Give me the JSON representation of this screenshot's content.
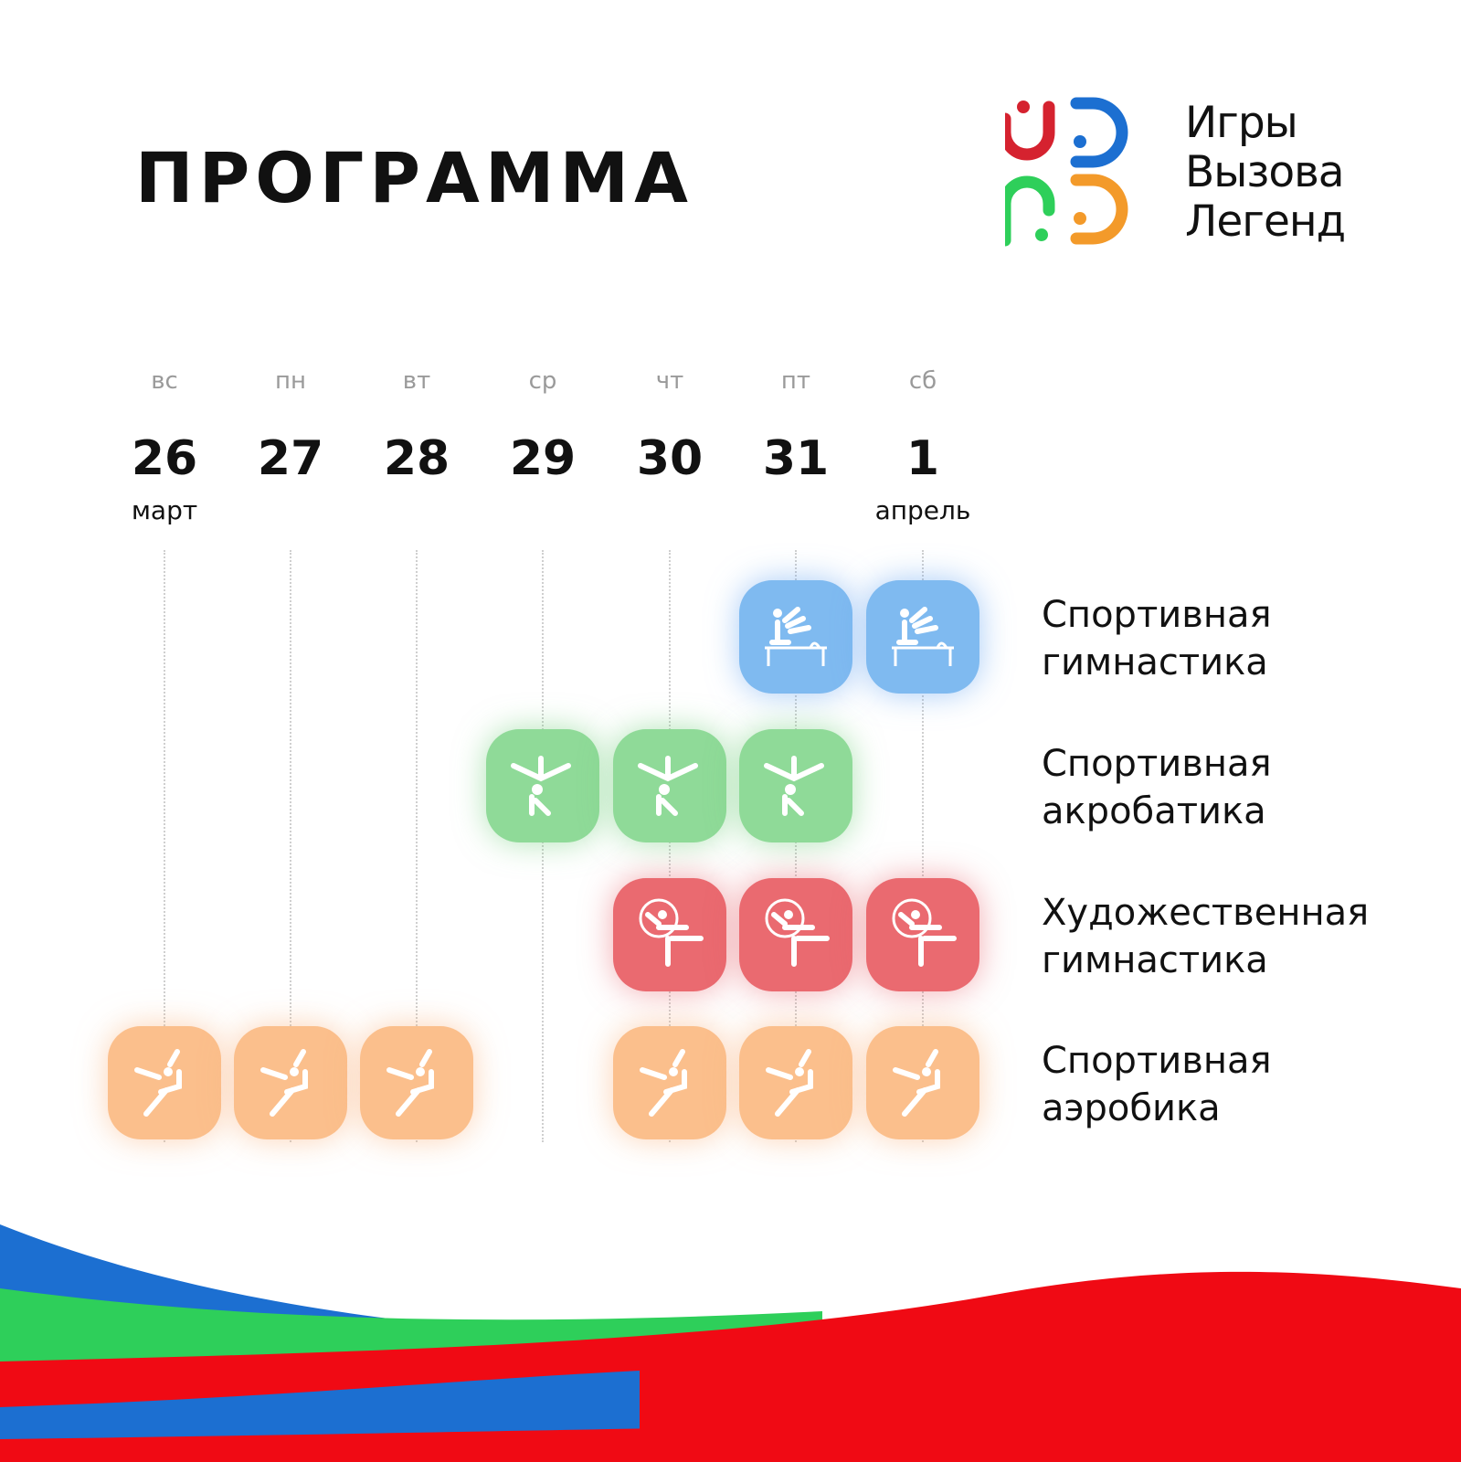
{
  "header": {
    "title": "ПРОГРАММА"
  },
  "logo": {
    "line1": "Игры",
    "line2": "Вызова",
    "line3": "Легенд"
  },
  "days": [
    {
      "dow": "вс",
      "num": "26",
      "month": "март"
    },
    {
      "dow": "пн",
      "num": "27",
      "month": ""
    },
    {
      "dow": "вт",
      "num": "28",
      "month": ""
    },
    {
      "dow": "ср",
      "num": "29",
      "month": ""
    },
    {
      "dow": "чт",
      "num": "30",
      "month": ""
    },
    {
      "dow": "пт",
      "num": "31",
      "month": ""
    },
    {
      "dow": "сб",
      "num": "1",
      "month": "апрель"
    }
  ],
  "sports": [
    {
      "line1": "Спортивная",
      "line2": "гимнастика",
      "color": "#7fbaf0",
      "icon": "artistic-gymnastics-icon",
      "days": [
        "31",
        "1"
      ]
    },
    {
      "line1": "Спортивная",
      "line2": "акробатика",
      "color": "#8fda98",
      "icon": "acrobatics-icon",
      "days": [
        "29",
        "30",
        "31"
      ]
    },
    {
      "line1": "Художественная",
      "line2": "гимнастика",
      "color": "#ea6a70",
      "icon": "rhythmic-gymnastics-icon",
      "days": [
        "30",
        "31",
        "1"
      ]
    },
    {
      "line1": "Спортивная",
      "line2": "аэробика",
      "color": "#fbbf8c",
      "icon": "aerobics-icon",
      "days": [
        "26",
        "27",
        "28",
        "30",
        "31",
        "1"
      ]
    }
  ],
  "colors": {
    "wave_blue": "#1c6fd1",
    "wave_green": "#2ecf5a",
    "wave_red": "#f00a14"
  }
}
